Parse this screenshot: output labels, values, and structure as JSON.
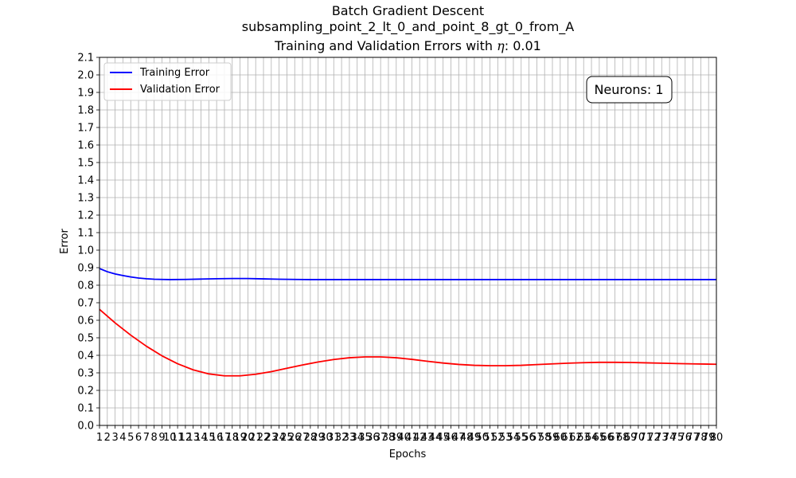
{
  "chart_data": {
    "type": "line",
    "title_line1": "Batch Gradient Descent",
    "title_line2": "subsampling_point_2_lt_0_and_point_8_gt_0_from_A",
    "title_line3_prefix": "Training and Validation Errors with ",
    "title_line3_symbol": "η",
    "title_line3_suffix": ": 0.01",
    "xlabel": "Epochs",
    "ylabel": "Error",
    "xlim": [
      1,
      80
    ],
    "ylim": [
      0,
      2.1
    ],
    "xticks": [
      1,
      2,
      3,
      4,
      5,
      6,
      7,
      8,
      9,
      10,
      11,
      12,
      13,
      14,
      15,
      16,
      17,
      18,
      19,
      20,
      21,
      22,
      23,
      24,
      25,
      26,
      27,
      28,
      29,
      30,
      31,
      32,
      33,
      34,
      35,
      36,
      37,
      38,
      39,
      40,
      41,
      42,
      43,
      44,
      45,
      46,
      47,
      48,
      49,
      50,
      51,
      52,
      53,
      54,
      55,
      56,
      57,
      58,
      59,
      60,
      61,
      62,
      63,
      64,
      65,
      66,
      67,
      68,
      69,
      70,
      71,
      72,
      73,
      74,
      75,
      76,
      77,
      78,
      79,
      80
    ],
    "yticks": [
      "0.0",
      "0.1",
      "0.2",
      "0.3",
      "0.4",
      "0.5",
      "0.6",
      "0.7",
      "0.8",
      "0.9",
      "1.0",
      "1.1",
      "1.2",
      "1.3",
      "1.4",
      "1.5",
      "1.6",
      "1.7",
      "1.8",
      "1.9",
      "2.0",
      "2.1"
    ],
    "grid": true,
    "legend_position": "top-left",
    "annotation": "Neurons: 1",
    "annotation_position": "top-right",
    "series": [
      {
        "name": "Training Error",
        "color": "#0000ff",
        "x": [
          1,
          2,
          3,
          4,
          5,
          6,
          7,
          8,
          9,
          10,
          12,
          14,
          16,
          18,
          20,
          22,
          24,
          26,
          28,
          30,
          35,
          40,
          45,
          50,
          55,
          60,
          65,
          70,
          75,
          80
        ],
        "values": [
          0.895,
          0.877,
          0.864,
          0.855,
          0.847,
          0.841,
          0.837,
          0.834,
          0.833,
          0.832,
          0.833,
          0.835,
          0.837,
          0.838,
          0.838,
          0.836,
          0.834,
          0.833,
          0.832,
          0.832,
          0.832,
          0.832,
          0.832,
          0.832,
          0.832,
          0.832,
          0.832,
          0.832,
          0.832,
          0.832
        ]
      },
      {
        "name": "Validation Error",
        "color": "#ff0000",
        "x": [
          1,
          3,
          5,
          7,
          9,
          11,
          13,
          15,
          17,
          19,
          21,
          23,
          25,
          27,
          29,
          31,
          33,
          35,
          37,
          39,
          41,
          43,
          45,
          47,
          49,
          51,
          53,
          55,
          57,
          59,
          61,
          63,
          65,
          67,
          69,
          71,
          73,
          75,
          77,
          80
        ],
        "values": [
          0.662,
          0.585,
          0.515,
          0.452,
          0.397,
          0.352,
          0.317,
          0.294,
          0.283,
          0.283,
          0.292,
          0.307,
          0.326,
          0.345,
          0.362,
          0.376,
          0.386,
          0.391,
          0.391,
          0.386,
          0.377,
          0.366,
          0.356,
          0.348,
          0.343,
          0.341,
          0.341,
          0.343,
          0.347,
          0.351,
          0.355,
          0.358,
          0.36,
          0.36,
          0.359,
          0.357,
          0.355,
          0.353,
          0.351,
          0.349
        ]
      }
    ]
  }
}
